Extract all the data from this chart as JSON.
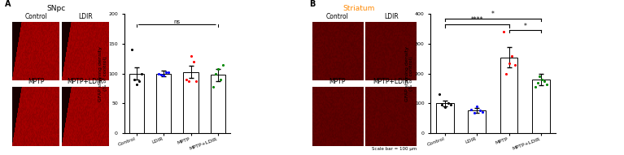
{
  "panel_A_title": "SNpc",
  "panel_B_title": "Striatum",
  "panel_A_label": "A",
  "panel_B_label": "B",
  "categories": [
    "Control",
    "LDIR",
    "MPTP",
    "MPTP+LDIR"
  ],
  "ylabel": "GFAP staining density\n(% of control)",
  "panel_A_ylim": [
    0,
    200
  ],
  "panel_A_yticks": [
    0,
    50,
    100,
    150,
    200
  ],
  "panel_B_ylim": [
    0,
    400
  ],
  "panel_B_yticks": [
    0,
    100,
    200,
    300,
    400
  ],
  "panel_A_bar_means": [
    100,
    100,
    103,
    98
  ],
  "panel_A_bar_sems": [
    10,
    5,
    10,
    10
  ],
  "panel_A_dots": {
    "Control": {
      "values": [
        140,
        90,
        82,
        88,
        100
      ],
      "color": "#000000"
    },
    "LDIR": {
      "values": [
        100,
        98,
        97,
        102,
        103
      ],
      "color": "#0000ff"
    },
    "MPTP": {
      "values": [
        90,
        87,
        130,
        120,
        88
      ],
      "color": "#ff0000"
    },
    "MPTP+LDIR": {
      "values": [
        78,
        100,
        108,
        90,
        115
      ],
      "color": "#008800"
    }
  },
  "panel_B_bar_means": [
    100,
    78,
    255,
    180
  ],
  "panel_B_bar_sems": [
    10,
    8,
    35,
    20
  ],
  "panel_B_dots": {
    "Control": {
      "values": [
        130,
        95,
        88,
        100,
        95
      ],
      "color": "#000000"
    },
    "LDIR": {
      "values": [
        80,
        70,
        90,
        78,
        72
      ],
      "color": "#0000ff"
    },
    "MPTP": {
      "values": [
        340,
        200,
        235,
        260,
        230
      ],
      "color": "#ff0000"
    },
    "MPTP+LDIR": {
      "values": [
        155,
        170,
        190,
        180,
        175,
        165
      ],
      "color": "#008800"
    }
  },
  "title_color_B": "#ff8800",
  "scale_bar_text": "Scale bar = 100 μm",
  "dot_colors": [
    "#000000",
    "#0000ff",
    "#ff0000",
    "#008800"
  ]
}
